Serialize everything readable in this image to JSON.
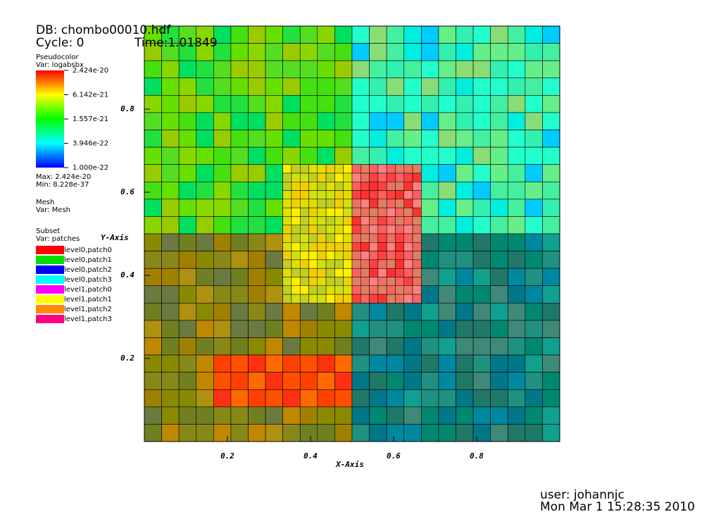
{
  "header": {
    "db": "DB: chombo00010.hdf",
    "cycle": "Cycle: 0",
    "time": "Time:1.01849"
  },
  "pseudocolor": {
    "title": "Pseudocolor",
    "var": "Var: logabsbx",
    "labels": [
      "2.424e-20",
      "6.142e-21",
      "1.557e-21",
      "3.946e-22",
      "1.000e-22"
    ],
    "max": "Max: 2.424e-20",
    "min": "Min: 8.228e-37"
  },
  "mesh": {
    "title": "Mesh",
    "var": "Var: Mesh"
  },
  "subset": {
    "title": "Subset",
    "var": "Var: patches",
    "entries": [
      {
        "name": "level0,patch0",
        "color": "#ff0000"
      },
      {
        "name": "level0,patch1",
        "color": "#00e000"
      },
      {
        "name": "level0,patch2",
        "color": "#0000ff"
      },
      {
        "name": "level0,patch3",
        "color": "#00ffff"
      },
      {
        "name": "level1,patch0",
        "color": "#ff00ff"
      },
      {
        "name": "level1,patch1",
        "color": "#ffff00"
      },
      {
        "name": "level1,patch2",
        "color": "#ff8800"
      },
      {
        "name": "level1,patch3",
        "color": "#ff0080"
      }
    ]
  },
  "plot": {
    "xlabel": "X-Axis",
    "ylabel": "Y-Axis",
    "xlim": [
      0,
      1
    ],
    "ylim": [
      0,
      1
    ],
    "xticks": [
      0.2,
      0.4,
      0.6,
      0.8
    ],
    "yticks": [
      0.2,
      0.4,
      0.6,
      0.8
    ]
  },
  "footer": {
    "user": "user: johannjc",
    "date": "Mon Mar  1 15:28:35 2010"
  }
}
